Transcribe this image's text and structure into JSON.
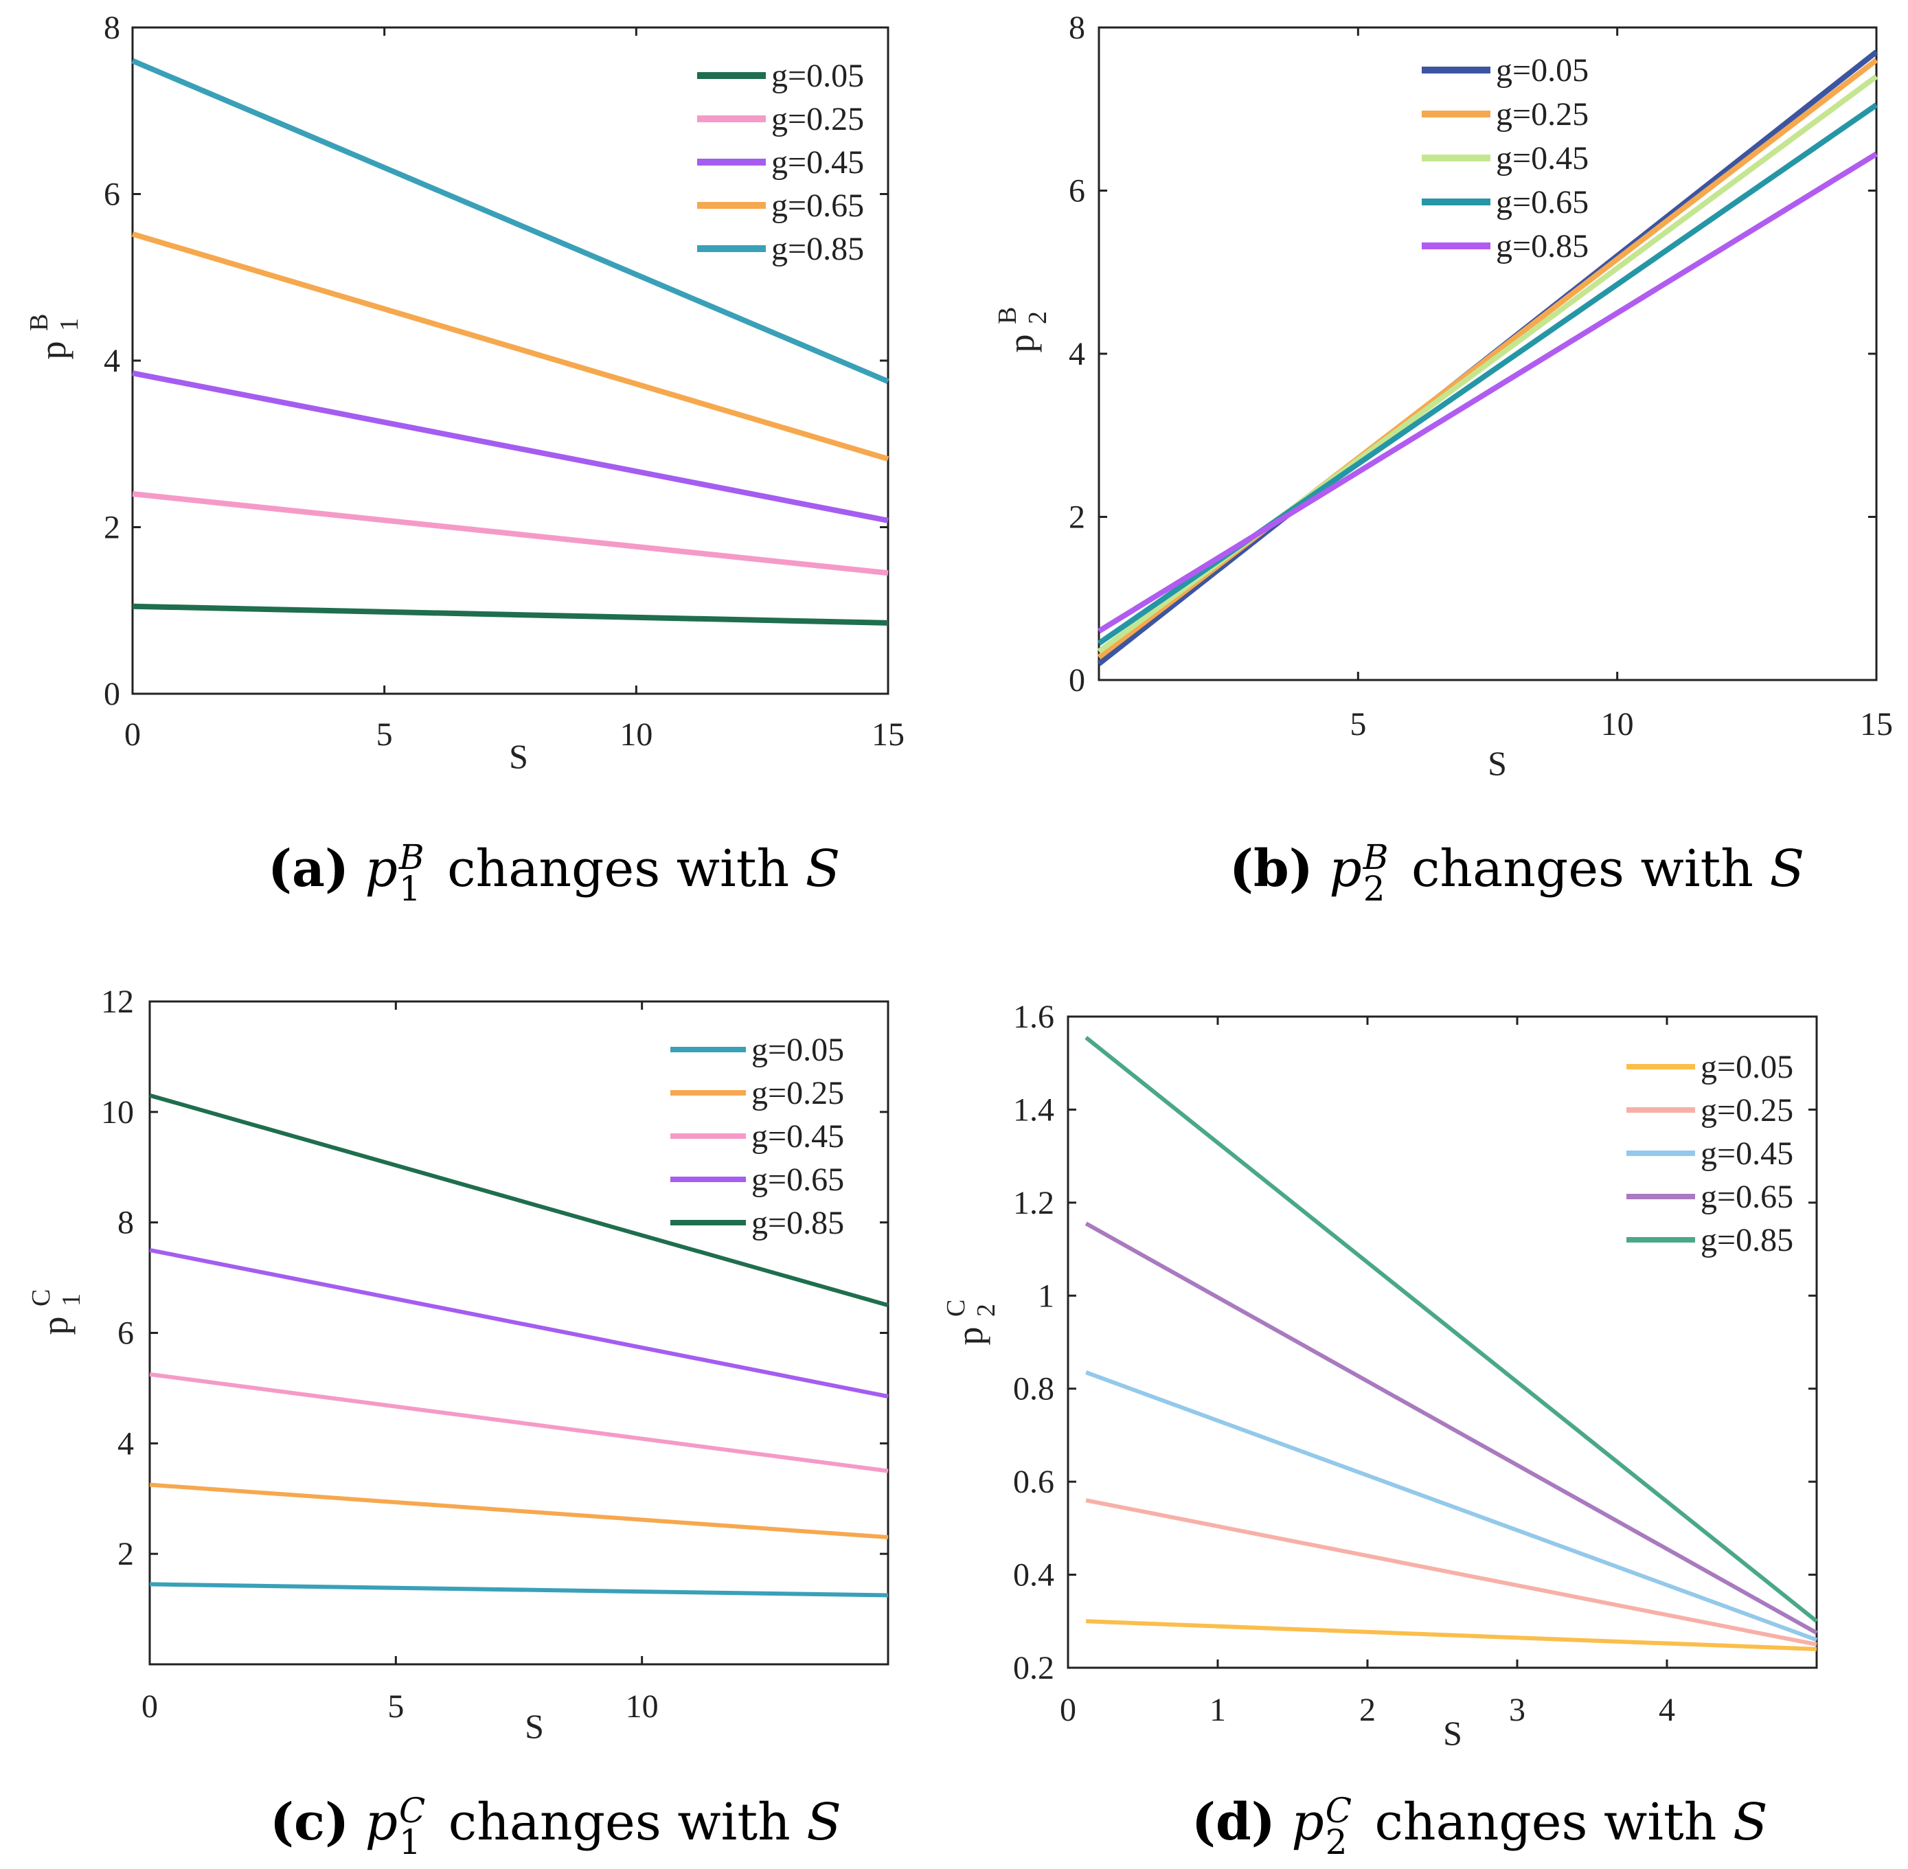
{
  "charts": [
    {
      "id": "a",
      "type": "line",
      "title": "",
      "xlabel": "S",
      "ylabel_base": "p",
      "ylabel_sup": "B",
      "ylabel_sub": "1",
      "xlim": [
        0,
        15
      ],
      "ylim": [
        0,
        8
      ],
      "xticks": [
        0,
        5,
        10,
        15
      ],
      "xtick_labels": [
        "0",
        "5",
        "10",
        "15"
      ],
      "yticks": [
        0,
        2,
        4,
        6,
        8
      ],
      "ytick_labels": [
        "0",
        "2",
        "4",
        "6",
        "8"
      ],
      "legend_position": "top-right",
      "series": [
        {
          "name": "g=0.05",
          "color": "#1f6e4e",
          "x": [
            0,
            15
          ],
          "y": [
            1.05,
            0.85
          ]
        },
        {
          "name": "g=0.25",
          "color": "#f59ac8",
          "x": [
            0,
            15
          ],
          "y": [
            2.4,
            1.45
          ]
        },
        {
          "name": "g=0.45",
          "color": "#a45df0",
          "x": [
            0,
            15
          ],
          "y": [
            3.85,
            2.08
          ]
        },
        {
          "name": "g=0.65",
          "color": "#f6a84e",
          "x": [
            0,
            15
          ],
          "y": [
            5.52,
            2.82
          ]
        },
        {
          "name": "g=0.85",
          "color": "#3aa0b8",
          "x": [
            0,
            15
          ],
          "y": [
            7.6,
            3.75
          ]
        }
      ],
      "caption": {
        "mark": "(a)",
        "sym": "p",
        "sup": "B",
        "sub": "1",
        "text": "changes with",
        "var": "S"
      }
    },
    {
      "id": "b",
      "type": "line",
      "title": "",
      "xlabel": "S",
      "ylabel_base": "p",
      "ylabel_sup": "B",
      "ylabel_sub": "2",
      "xlim": [
        0,
        15
      ],
      "ylim": [
        0,
        8
      ],
      "xticks": [
        5,
        10,
        15
      ],
      "xtick_labels": [
        "5",
        "10",
        "15"
      ],
      "yticks": [
        0,
        2,
        4,
        6,
        8
      ],
      "ytick_labels": [
        "0",
        "2",
        "4",
        "6",
        "8"
      ],
      "legend_position": "top-center",
      "series": [
        {
          "name": "g=0.05",
          "color": "#3c55a0",
          "x": [
            0,
            15
          ],
          "y": [
            0.2,
            7.7
          ]
        },
        {
          "name": "g=0.25",
          "color": "#f6a84e",
          "x": [
            0,
            15
          ],
          "y": [
            0.28,
            7.6
          ]
        },
        {
          "name": "g=0.45",
          "color": "#c4e690",
          "x": [
            0,
            15
          ],
          "y": [
            0.35,
            7.4
          ]
        },
        {
          "name": "g=0.65",
          "color": "#2596a6",
          "x": [
            0,
            15
          ],
          "y": [
            0.45,
            7.05
          ]
        },
        {
          "name": "g=0.85",
          "color": "#b15cf0",
          "x": [
            0,
            15
          ],
          "y": [
            0.6,
            6.45
          ]
        }
      ],
      "caption": {
        "mark": "(b)",
        "sym": "p",
        "sup": "B",
        "sub": "2",
        "text": "changes with",
        "var": "S"
      }
    },
    {
      "id": "c",
      "type": "line",
      "title": "",
      "xlabel": "S",
      "ylabel_base": "p",
      "ylabel_sup": "C",
      "ylabel_sub": "1",
      "xlim": [
        0,
        15
      ],
      "ylim": [
        0,
        12
      ],
      "xticks": [
        0,
        5,
        10
      ],
      "xtick_labels": [
        "0",
        "5",
        "10"
      ],
      "yticks": [
        2,
        4,
        6,
        8,
        10,
        12
      ],
      "ytick_labels": [
        "2",
        "4",
        "6",
        "8",
        "10",
        "12"
      ],
      "legend_position": "top-right",
      "series": [
        {
          "name": "g=0.05",
          "color": "#3aa0b8",
          "x": [
            0,
            15
          ],
          "y": [
            1.45,
            1.25
          ]
        },
        {
          "name": "g=0.25",
          "color": "#f6a84e",
          "x": [
            0,
            15
          ],
          "y": [
            3.25,
            2.3
          ]
        },
        {
          "name": "g=0.45",
          "color": "#f59ac8",
          "x": [
            0,
            15
          ],
          "y": [
            5.25,
            3.5
          ]
        },
        {
          "name": "g=0.65",
          "color": "#a45df0",
          "x": [
            0,
            15
          ],
          "y": [
            7.5,
            4.85
          ]
        },
        {
          "name": "g=0.85",
          "color": "#1f6e4e",
          "x": [
            0,
            15
          ],
          "y": [
            10.3,
            6.5
          ]
        }
      ],
      "caption": {
        "mark": "(c)",
        "sym": "p",
        "sup": "C",
        "sub": "1",
        "text": "changes with",
        "var": "S"
      }
    },
    {
      "id": "d",
      "type": "line",
      "title": "",
      "xlabel": "S",
      "ylabel_base": "p",
      "ylabel_sup": "C",
      "ylabel_sub": "2",
      "xlim": [
        0,
        5
      ],
      "ylim": [
        0.2,
        1.6
      ],
      "xticks": [
        0,
        1,
        2,
        3,
        4
      ],
      "xtick_labels": [
        "0",
        "1",
        "2",
        "3",
        "4"
      ],
      "yticks": [
        0.2,
        0.4,
        0.6,
        0.8,
        1.0,
        1.2,
        1.4,
        1.6
      ],
      "ytick_labels": [
        "0.2",
        "0.4",
        "0.6",
        "0.8",
        "1",
        "1.2",
        "1.4",
        "1.6"
      ],
      "legend_position": "top-right",
      "series": [
        {
          "name": "g=0.05",
          "color": "#fbbe4a",
          "x": [
            0.12,
            5
          ],
          "y": [
            0.3,
            0.24
          ]
        },
        {
          "name": "g=0.25",
          "color": "#f7b0a8",
          "x": [
            0.12,
            5
          ],
          "y": [
            0.56,
            0.25
          ]
        },
        {
          "name": "g=0.45",
          "color": "#93c9ea",
          "x": [
            0.12,
            5
          ],
          "y": [
            0.835,
            0.26
          ]
        },
        {
          "name": "g=0.65",
          "color": "#a97abf",
          "x": [
            0.12,
            5
          ],
          "y": [
            1.155,
            0.275
          ]
        },
        {
          "name": "g=0.85",
          "color": "#4aa886",
          "x": [
            0.12,
            5
          ],
          "y": [
            1.555,
            0.3
          ]
        }
      ],
      "caption": {
        "mark": "(d)",
        "sym": "p",
        "sup": "C",
        "sub": "2",
        "text": "changes with",
        "var": "S"
      }
    }
  ]
}
